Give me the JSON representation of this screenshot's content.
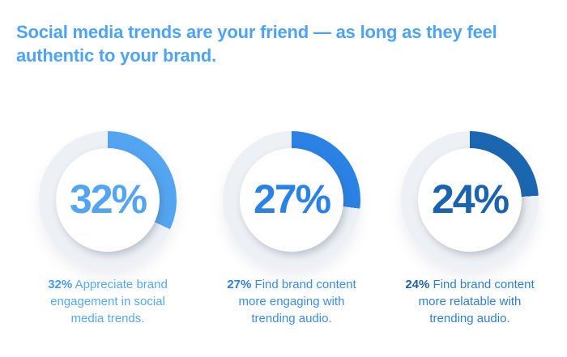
{
  "page": {
    "background": "#ffffff"
  },
  "header": {
    "title_line1": "Social media trends are your friend — as long as they feel",
    "title_line2": "authentic to your brand.",
    "color": "#4da3f5"
  },
  "chart_data": {
    "type": "pie",
    "subtype": "donut-gauge-set",
    "title": "Social media trends are your friend — as long as they feel authentic to your brand.",
    "track_color": "#edf0f4",
    "start_angle_deg": 0,
    "direction": "clockwise",
    "legend_position": "caption-below-each-gauge",
    "gauges": [
      {
        "value": 32,
        "value_label": "32%",
        "caption_bold": "32%",
        "caption_text": " Appreciate brand engagement in social media trends.",
        "arc_color": "#53a5f2",
        "value_color": "#53a5f2",
        "caption_bold_color": "#479cf0",
        "caption_text_color": "#55a8f4"
      },
      {
        "value": 27,
        "value_label": "27%",
        "caption_bold": "27%",
        "caption_text": " Find brand content more engaging with trending audio.",
        "arc_color": "#2a82e4",
        "value_color": "#2a82e4",
        "caption_bold_color": "#2a7fdf",
        "caption_text_color": "#3b8ce9"
      },
      {
        "value": 24,
        "value_label": "24%",
        "caption_bold": "24%",
        "caption_text": " Find brand content more relatable with trending audio.",
        "arc_color": "#1b66b0",
        "value_color": "#1c63ae",
        "caption_bold_color": "#1d61ad",
        "caption_text_color": "#2e7fd1"
      }
    ]
  }
}
